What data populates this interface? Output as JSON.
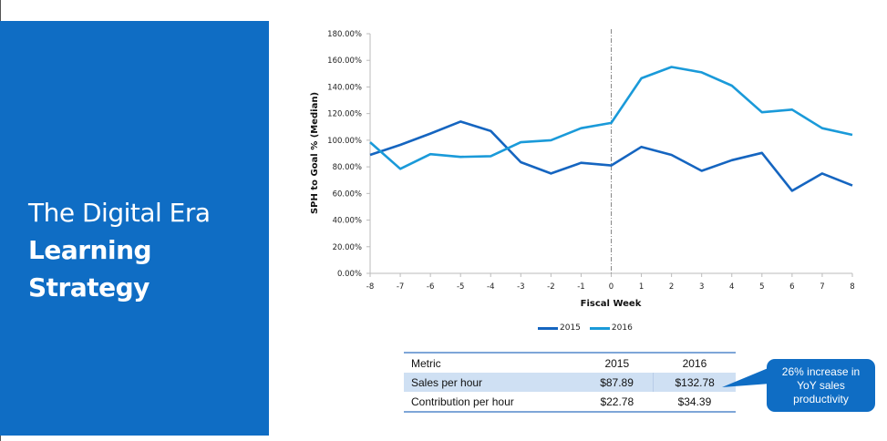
{
  "slide": {
    "title_line1": "The Digital Era",
    "title_line2": "Learning",
    "title_line3": "Strategy",
    "panel_color": "#0f6dc4"
  },
  "chart_data": {
    "type": "line",
    "title": "",
    "xlabel": "Fiscal Week",
    "ylabel": "SPH to Goal % (Median)",
    "x": [
      -8,
      -7,
      -6,
      -5,
      -4,
      -3,
      -2,
      -1,
      0,
      1,
      2,
      3,
      4,
      5,
      6,
      7,
      8
    ],
    "x_tick_labels": [
      "-8",
      "-7",
      "-6",
      "-5",
      "-4",
      "-3",
      "-2",
      "-1",
      "0",
      "1",
      "2",
      "3",
      "4",
      "5",
      "6",
      "7",
      "8"
    ],
    "y_tick_labels": [
      "0.00%",
      "20.00%",
      "40.00%",
      "60.00%",
      "80.00%",
      "100.00%",
      "120.00%",
      "140.00%",
      "160.00%",
      "180.00%"
    ],
    "ylim": [
      0,
      180
    ],
    "xlim": [
      -8,
      8
    ],
    "grid": false,
    "reference_line_x": 0,
    "legend_position": "bottom",
    "series": [
      {
        "name": "2015",
        "color": "#1565c0",
        "values": [
          89,
          96.5,
          105,
          114,
          107,
          83.5,
          75,
          83,
          81,
          95,
          89,
          77,
          85,
          90.5,
          62,
          75,
          66
        ]
      },
      {
        "name": "2016",
        "color": "#1a9ad9",
        "values": [
          98.5,
          78.5,
          89.5,
          87.5,
          88,
          98.5,
          100,
          109,
          113,
          146.5,
          155,
          151,
          141,
          121,
          123,
          109,
          104
        ]
      }
    ]
  },
  "table": {
    "headers": [
      "Metric",
      "2015",
      "2016"
    ],
    "rows": [
      [
        "Sales per hour",
        "$87.89",
        "$132.78"
      ],
      [
        "Contribution per hour",
        "$22.78",
        "$34.39"
      ]
    ]
  },
  "callout": {
    "line1": "26% increase in",
    "line2": "YoY sales",
    "line3": "productivity"
  }
}
